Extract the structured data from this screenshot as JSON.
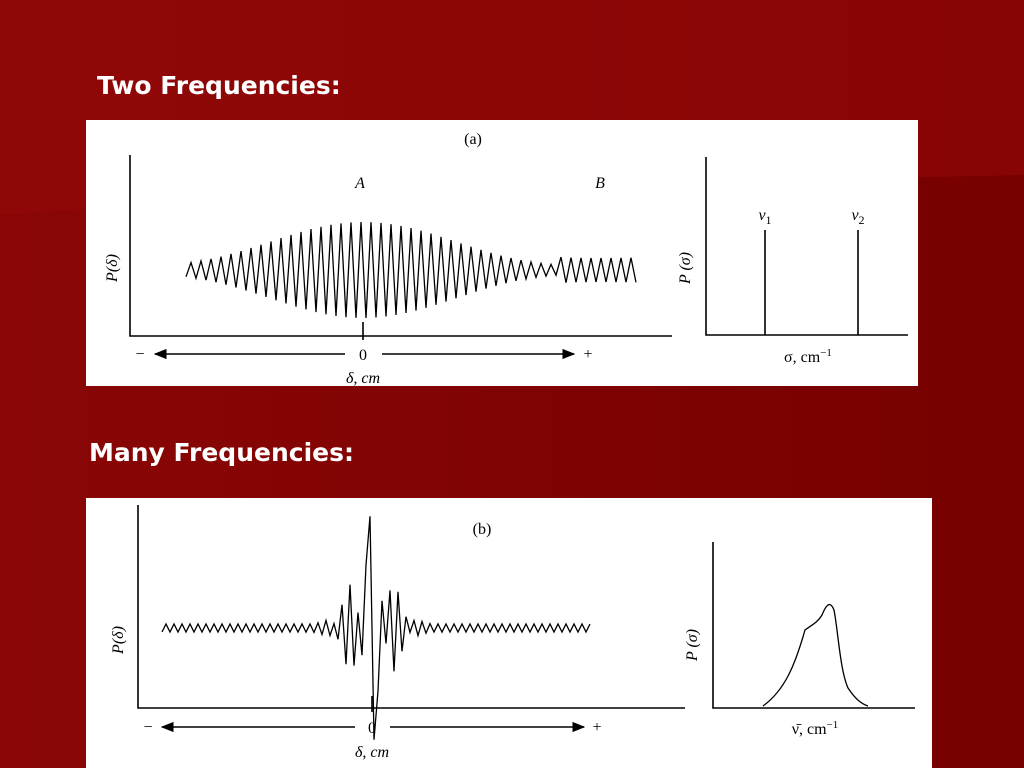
{
  "headings": [
    "Two Frequencies:",
    "Many Frequencies:"
  ],
  "figure_a": {
    "label": "(a)",
    "peaks": [
      "A",
      "B"
    ],
    "left_y_label": "P(δ)",
    "axis_minus": "−",
    "axis_zero": "0",
    "axis_plus": "+",
    "left_x_label": "δ, cm",
    "right_y_label": "P (σ)",
    "lines": [
      {
        "base": "ν",
        "sub": "1"
      },
      {
        "base": "ν",
        "sub": "2"
      }
    ],
    "right_x_label": {
      "base": "σ, cm",
      "sup": "−1"
    }
  },
  "figure_b": {
    "label": "(b)",
    "left_y_label": "P(δ)",
    "axis_minus": "−",
    "axis_zero": "0",
    "axis_plus": "+",
    "left_x_label": "δ, cm",
    "right_y_label": "P (σ)",
    "right_x_label": {
      "base": "ν̄, cm",
      "sup": "−1"
    }
  }
}
